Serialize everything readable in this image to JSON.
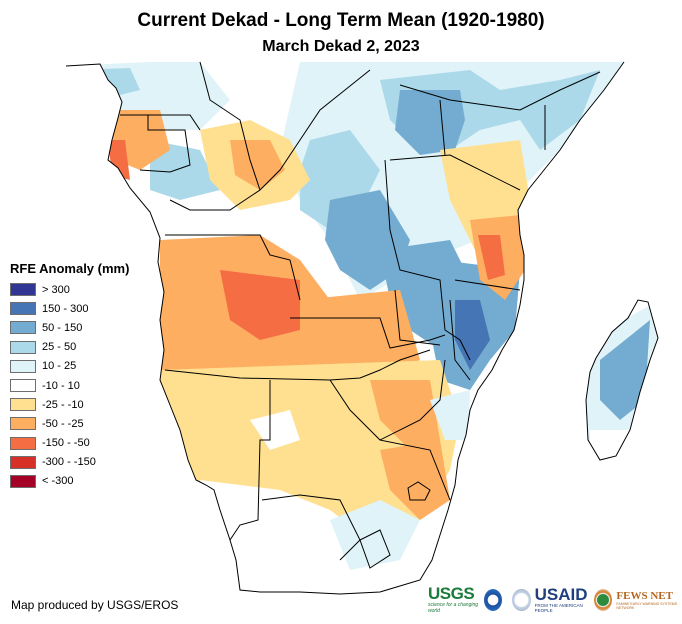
{
  "header": {
    "title": "Current Dekad - Long Term Mean (1920-1980)",
    "subtitle": "March Dekad 2, 2023"
  },
  "legend": {
    "title": "RFE Anomaly (mm)",
    "classes": [
      {
        "label": "> 300",
        "color": "#313695"
      },
      {
        "label": "150 - 300",
        "color": "#4575b4"
      },
      {
        "label": "50 - 150",
        "color": "#74acd1"
      },
      {
        "label": "25 - 50",
        "color": "#abd9e9"
      },
      {
        "label": "10 - 25",
        "color": "#e0f3f8"
      },
      {
        "label": "-10 - 10",
        "color": "#ffffff"
      },
      {
        "label": "-25 - -10",
        "color": "#fee090"
      },
      {
        "label": "-50 - -25",
        "color": "#fdae61"
      },
      {
        "label": "-150 - -50",
        "color": "#f46d43"
      },
      {
        "label": "-300 - -150",
        "color": "#d73027"
      },
      {
        "label": "< -300",
        "color": "#a50026"
      }
    ]
  },
  "credit": "Map produced by USGS/EROS",
  "logos": {
    "usgs": "USGS",
    "usgs_tagline": "science for a changing world",
    "noaa": "NOAA",
    "usaid": "USAID",
    "usaid_tagline": "FROM THE AMERICAN PEOPLE",
    "fews": "FEWS NET",
    "fews_tagline": "FAMINE EARLY WARNING SYSTEMS NETWORK"
  }
}
